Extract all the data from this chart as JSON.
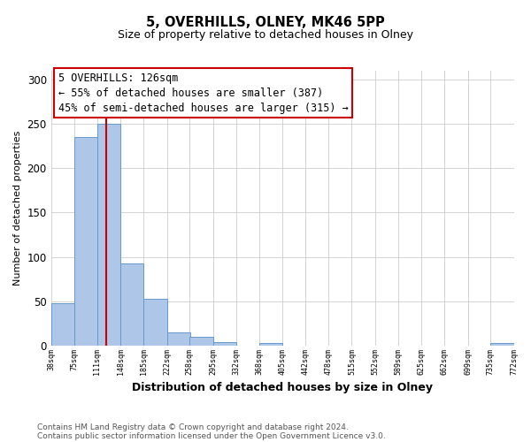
{
  "title": "5, OVERHILLS, OLNEY, MK46 5PP",
  "subtitle": "Size of property relative to detached houses in Olney",
  "xlabel": "Distribution of detached houses by size in Olney",
  "ylabel": "Number of detached properties",
  "bin_edges": [
    38,
    75,
    111,
    148,
    185,
    222,
    258,
    295,
    332,
    368,
    405,
    442,
    478,
    515,
    552,
    589,
    625,
    662,
    699,
    735,
    772
  ],
  "bar_heights": [
    48,
    235,
    250,
    93,
    53,
    15,
    10,
    4,
    0,
    3,
    0,
    0,
    0,
    0,
    0,
    0,
    0,
    0,
    0,
    3
  ],
  "bar_color": "#aec6e8",
  "bar_edge_color": "#6699cc",
  "vline_x": 126,
  "vline_color": "#cc0000",
  "ylim": [
    0,
    310
  ],
  "yticks": [
    0,
    50,
    100,
    150,
    200,
    250,
    300
  ],
  "annotation_title": "5 OVERHILLS: 126sqm",
  "annotation_line1": "← 55% of detached houses are smaller (387)",
  "annotation_line2": "45% of semi-detached houses are larger (315) →",
  "annotation_box_color": "#ffffff",
  "annotation_box_edge": "#cc0000",
  "footnote1": "Contains HM Land Registry data © Crown copyright and database right 2024.",
  "footnote2": "Contains public sector information licensed under the Open Government Licence v3.0.",
  "tick_labels": [
    "38sqm",
    "75sqm",
    "111sqm",
    "148sqm",
    "185sqm",
    "222sqm",
    "258sqm",
    "295sqm",
    "332sqm",
    "368sqm",
    "405sqm",
    "442sqm",
    "478sqm",
    "515sqm",
    "552sqm",
    "589sqm",
    "625sqm",
    "662sqm",
    "699sqm",
    "735sqm",
    "772sqm"
  ],
  "background_color": "#ffffff",
  "title_fontsize": 10.5,
  "subtitle_fontsize": 9,
  "xlabel_fontsize": 9,
  "ylabel_fontsize": 8,
  "annotation_fontsize": 8.5,
  "footnote_fontsize": 6.5,
  "footnote_color": "#555555"
}
